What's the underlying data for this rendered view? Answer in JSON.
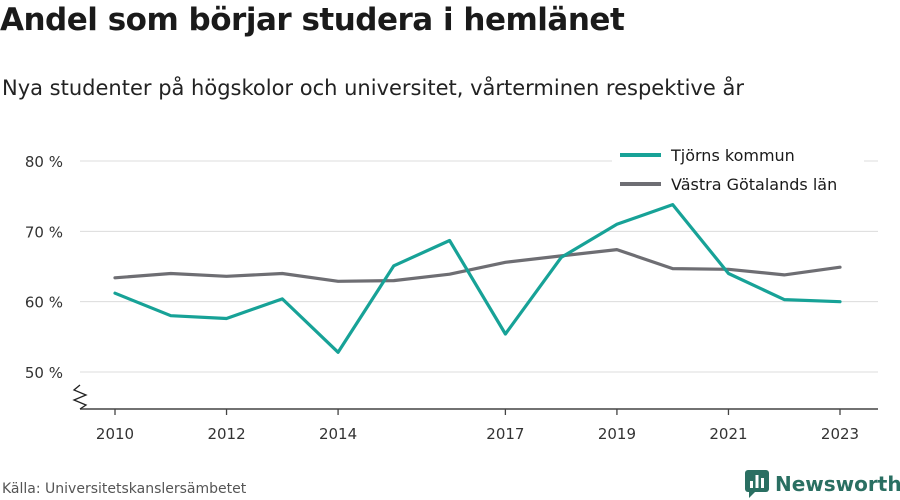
{
  "title": "Andel som börjar studera i hemlänet",
  "subtitle": "Nya studenter på högskolor och universitet, vårterminen respektive år",
  "source": "Källa: Universitetskanslersämbetet",
  "brand": {
    "name": "Newsworthy",
    "icon": "newsworthy-logo-icon",
    "color": "#2a6f62"
  },
  "chart_data": {
    "type": "line",
    "x": [
      2010,
      2011,
      2012,
      2013,
      2014,
      2015,
      2016,
      2017,
      2018,
      2019,
      2020,
      2021,
      2022,
      2023
    ],
    "x_ticks": [
      2010,
      2012,
      2014,
      2017,
      2019,
      2021,
      2023
    ],
    "y_ticks": [
      50,
      60,
      70,
      80
    ],
    "y_tick_labels": [
      "50 %",
      "60 %",
      "70 %",
      "80 %"
    ],
    "ylim": [
      50,
      80
    ],
    "y_axis_break": true,
    "grid": true,
    "legend_position": "top-right",
    "series": [
      {
        "name": "Tjörns kommun",
        "color": "#17a297",
        "values": [
          61.2,
          58.0,
          57.6,
          60.4,
          52.8,
          65.1,
          68.7,
          55.4,
          66.3,
          71.0,
          73.8,
          64.0,
          60.3,
          60.0
        ]
      },
      {
        "name": "Västra Götalands län",
        "color": "#6e6e73",
        "values": [
          63.4,
          64.0,
          63.6,
          64.0,
          62.9,
          63.0,
          63.9,
          65.6,
          66.5,
          67.4,
          64.7,
          64.6,
          63.8,
          64.9
        ]
      }
    ]
  }
}
